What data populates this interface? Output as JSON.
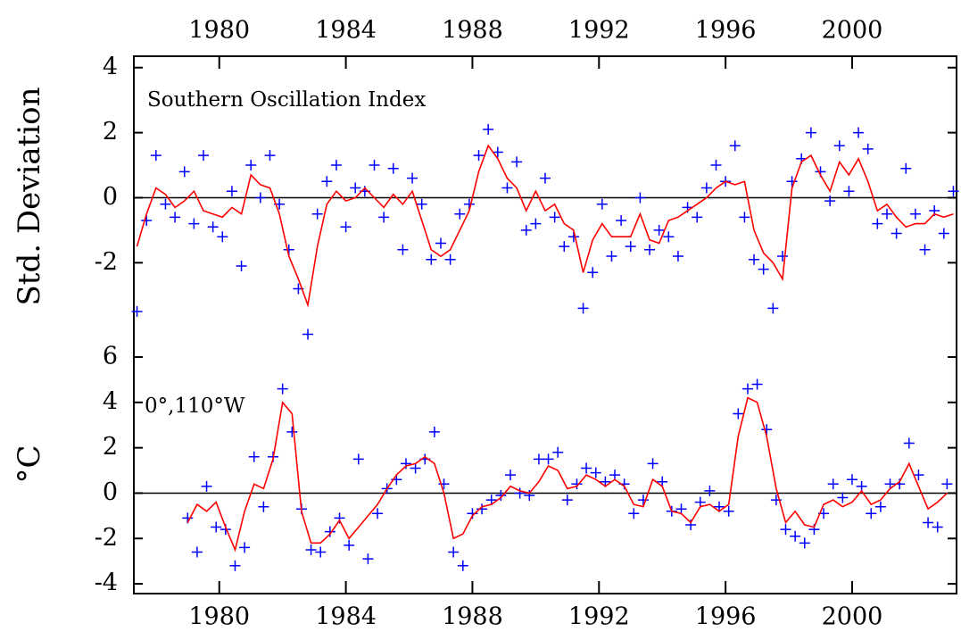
{
  "chart_data": [
    {
      "type": "scatter-line",
      "annotation": "Southern Oscillation Index",
      "ylabel": "Std. Deviation",
      "xlim": [
        1977.3,
        2003.3
      ],
      "xticks": [
        1980,
        1984,
        1988,
        1992,
        1996,
        2000
      ],
      "ylim": [
        -4.9,
        4.35
      ],
      "yticks": [
        -2,
        0,
        2,
        4
      ],
      "hline": 0,
      "x": [
        1977.4,
        1977.7,
        1978.0,
        1978.3,
        1978.6,
        1978.9,
        1979.2,
        1979.5,
        1979.8,
        1980.1,
        1980.4,
        1980.7,
        1981.0,
        1981.3,
        1981.6,
        1981.9,
        1982.2,
        1982.5,
        1982.8,
        1983.1,
        1983.4,
        1983.7,
        1984.0,
        1984.3,
        1984.6,
        1984.9,
        1985.2,
        1985.5,
        1985.8,
        1986.1,
        1986.4,
        1986.7,
        1987.0,
        1987.3,
        1987.6,
        1987.9,
        1988.2,
        1988.5,
        1988.8,
        1989.1,
        1989.4,
        1989.7,
        1990.0,
        1990.3,
        1990.6,
        1990.9,
        1991.2,
        1991.5,
        1991.8,
        1992.1,
        1992.4,
        1992.7,
        1993.0,
        1993.3,
        1993.6,
        1993.9,
        1994.2,
        1994.5,
        1994.8,
        1995.1,
        1995.4,
        1995.7,
        1996.0,
        1996.3,
        1996.6,
        1996.9,
        1997.2,
        1997.5,
        1997.8,
        1998.1,
        1998.4,
        1998.7,
        1999.0,
        1999.3,
        1999.6,
        1999.9,
        2000.2,
        2000.5,
        2000.8,
        2001.1,
        2001.4,
        2001.7,
        2002.0,
        2002.3,
        2002.6,
        2002.9,
        2003.2
      ],
      "series": [
        {
          "kind": "scatter",
          "color": "#0000ff",
          "values": [
            -3.5,
            -0.7,
            1.3,
            -0.2,
            -0.6,
            0.8,
            -0.8,
            1.3,
            -0.9,
            -1.2,
            0.2,
            -2.1,
            1.0,
            0.0,
            1.3,
            -0.2,
            -1.6,
            -2.8,
            -4.2,
            -0.5,
            0.5,
            1.0,
            -0.9,
            0.3,
            0.2,
            1.0,
            -0.6,
            0.9,
            -1.6,
            0.6,
            -0.2,
            -1.9,
            -1.4,
            -1.9,
            -0.5,
            -0.2,
            1.3,
            2.1,
            1.4,
            0.3,
            1.1,
            -1.0,
            -0.8,
            0.6,
            -0.6,
            -1.5,
            -1.2,
            -3.4,
            -2.3,
            -0.2,
            -1.8,
            -0.7,
            -1.5,
            0.0,
            -1.6,
            -1.0,
            -1.2,
            -1.8,
            -0.3,
            -0.6,
            0.3,
            1.0,
            0.5,
            1.6,
            -0.6,
            -1.9,
            -2.2,
            -3.4,
            -1.8,
            0.5,
            1.2,
            2.0,
            0.8,
            -0.1,
            1.6,
            0.2,
            2.0,
            1.5,
            -0.8,
            -0.5,
            -1.1,
            0.9,
            -0.5,
            -1.6,
            -0.4,
            -1.1,
            0.2
          ]
        },
        {
          "kind": "line",
          "color": "#ff0000",
          "values": [
            -1.5,
            -0.5,
            0.3,
            0.1,
            -0.3,
            -0.1,
            0.2,
            -0.4,
            -0.5,
            -0.6,
            -0.3,
            -0.5,
            0.7,
            0.4,
            0.3,
            -0.5,
            -1.8,
            -2.5,
            -3.3,
            -1.5,
            -0.2,
            0.2,
            -0.1,
            0.0,
            0.3,
            0.0,
            -0.3,
            0.1,
            -0.2,
            0.2,
            -0.7,
            -1.6,
            -1.8,
            -1.6,
            -1.0,
            -0.4,
            0.8,
            1.6,
            1.2,
            0.6,
            0.3,
            -0.4,
            0.2,
            -0.4,
            -0.2,
            -0.8,
            -1.0,
            -2.3,
            -1.3,
            -0.8,
            -1.2,
            -1.2,
            -1.2,
            -0.5,
            -1.3,
            -1.4,
            -0.7,
            -0.6,
            -0.4,
            -0.2,
            0.0,
            0.3,
            0.5,
            0.4,
            0.5,
            -1.0,
            -1.7,
            -2.0,
            -2.5,
            0.3,
            1.1,
            1.3,
            0.7,
            0.2,
            1.1,
            0.7,
            1.2,
            0.5,
            -0.4,
            -0.2,
            -0.6,
            -0.9,
            -0.8,
            -0.8,
            -0.5,
            -0.6,
            -0.5
          ]
        }
      ]
    },
    {
      "type": "scatter-line",
      "annotation": "0°,110°W",
      "ylabel": "°C",
      "xlim": [
        1977.3,
        2003.3
      ],
      "xticks": [
        1980,
        1984,
        1988,
        1992,
        1996,
        2000
      ],
      "ylim": [
        -4.43,
        6
      ],
      "yticks": [
        -4,
        -2,
        0,
        2,
        4,
        6
      ],
      "hline": 0,
      "x": [
        1979.0,
        1979.3,
        1979.6,
        1979.9,
        1980.2,
        1980.5,
        1980.8,
        1981.1,
        1981.4,
        1981.7,
        1982.0,
        1982.3,
        1982.6,
        1982.9,
        1983.2,
        1983.5,
        1983.8,
        1984.1,
        1984.4,
        1984.7,
        1985.0,
        1985.3,
        1985.6,
        1985.9,
        1986.2,
        1986.5,
        1986.8,
        1987.1,
        1987.4,
        1987.7,
        1988.0,
        1988.3,
        1988.6,
        1988.9,
        1989.2,
        1989.5,
        1989.8,
        1990.1,
        1990.4,
        1990.7,
        1991.0,
        1991.3,
        1991.6,
        1991.9,
        1992.2,
        1992.5,
        1992.8,
        1993.1,
        1993.4,
        1993.7,
        1994.0,
        1994.3,
        1994.6,
        1994.9,
        1995.2,
        1995.5,
        1995.8,
        1996.1,
        1996.4,
        1996.7,
        1997.0,
        1997.3,
        1997.6,
        1997.9,
        1998.2,
        1998.5,
        1998.8,
        1999.1,
        1999.4,
        1999.7,
        2000.0,
        2000.3,
        2000.6,
        2000.9,
        2001.2,
        2001.5,
        2001.8,
        2002.1,
        2002.4,
        2002.7,
        2003.0
      ],
      "series": [
        {
          "kind": "scatter",
          "color": "#0000ff",
          "values": [
            -1.1,
            -2.6,
            0.3,
            -1.5,
            -1.6,
            -3.2,
            -2.4,
            1.6,
            -0.6,
            1.6,
            4.6,
            2.7,
            -0.7,
            -2.5,
            -2.6,
            -1.7,
            -1.1,
            -2.3,
            1.5,
            -2.9,
            -0.9,
            0.2,
            0.6,
            1.3,
            1.1,
            1.5,
            2.7,
            0.4,
            -2.6,
            -3.2,
            -0.9,
            -0.7,
            -0.3,
            -0.1,
            0.8,
            0.0,
            -0.1,
            1.5,
            1.5,
            1.8,
            -0.3,
            0.4,
            1.1,
            0.9,
            0.5,
            0.8,
            0.4,
            -0.9,
            -0.3,
            1.3,
            0.5,
            -0.8,
            -0.7,
            -1.4,
            -0.4,
            0.1,
            -0.6,
            -0.8,
            3.5,
            4.6,
            4.8,
            2.8,
            -0.3,
            -1.6,
            -1.9,
            -2.2,
            -1.6,
            -0.9,
            0.4,
            -0.2,
            0.6,
            0.3,
            -0.9,
            -0.6,
            0.4,
            0.4,
            2.2,
            0.8,
            -1.3,
            -1.5,
            0.4
          ]
        },
        {
          "kind": "line",
          "color": "#ff0000",
          "values": [
            -1.3,
            -0.5,
            -0.8,
            -0.4,
            -1.5,
            -2.5,
            -0.8,
            0.4,
            0.2,
            1.5,
            4.0,
            3.5,
            -0.8,
            -2.2,
            -2.2,
            -1.8,
            -1.2,
            -2.0,
            -1.5,
            -1.0,
            -0.5,
            0.2,
            0.8,
            1.2,
            1.3,
            1.6,
            1.3,
            0.0,
            -2.0,
            -1.8,
            -1.0,
            -0.6,
            -0.5,
            -0.2,
            0.3,
            0.1,
            0.0,
            0.5,
            1.2,
            1.0,
            0.2,
            0.3,
            0.8,
            0.6,
            0.3,
            0.6,
            0.3,
            -0.5,
            -0.6,
            0.6,
            0.3,
            -0.8,
            -0.9,
            -1.3,
            -0.6,
            -0.5,
            -0.8,
            -0.5,
            2.5,
            4.2,
            4.0,
            2.5,
            0.2,
            -1.3,
            -0.8,
            -1.4,
            -1.5,
            -0.5,
            -0.3,
            -0.6,
            -0.4,
            0.1,
            -0.5,
            -0.3,
            0.2,
            0.5,
            1.3,
            0.3,
            -0.7,
            -0.4,
            0.0
          ]
        }
      ]
    }
  ]
}
